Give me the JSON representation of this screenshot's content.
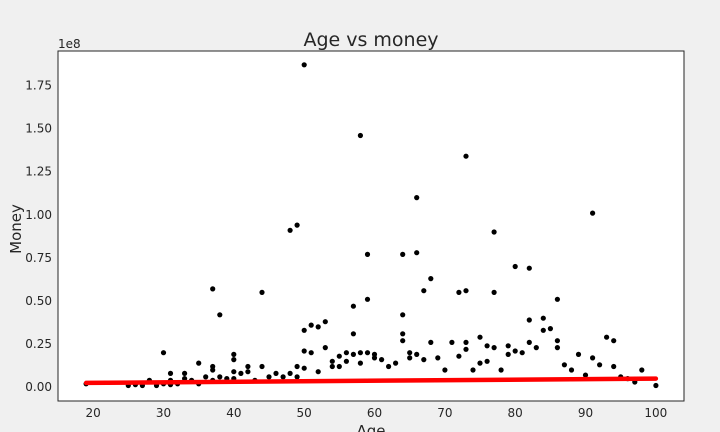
{
  "chart_data": {
    "type": "scatter",
    "title": "Age vs money",
    "xlabel": "Age",
    "ylabel": "Money",
    "y_offset_label": "1e8",
    "xlim": [
      15,
      104
    ],
    "ylim": [
      -8000000,
      195000000
    ],
    "x_ticks": [
      20,
      30,
      40,
      50,
      60,
      70,
      80,
      90,
      100
    ],
    "y_ticks": [
      0,
      25000000,
      50000000,
      75000000,
      100000000,
      125000000,
      150000000,
      175000000
    ],
    "y_tick_labels": [
      "0.00",
      "0.25",
      "0.50",
      "0.75",
      "1.00",
      "1.25",
      "1.50",
      "1.75"
    ],
    "grid": false,
    "legend": "none",
    "colors": {
      "points": "#000000",
      "fit_line": "#ff0000",
      "background": "#f0f0f0",
      "plot_area": "#ffffff"
    },
    "fit_line": {
      "x": [
        19,
        100
      ],
      "y": [
        2500000,
        5000000
      ]
    },
    "points": [
      [
        19,
        2000000
      ],
      [
        25,
        1000000
      ],
      [
        26,
        1500000
      ],
      [
        27,
        1000000
      ],
      [
        28,
        4000000
      ],
      [
        29,
        1000000
      ],
      [
        30,
        2000000
      ],
      [
        30,
        20000000
      ],
      [
        31,
        8000000
      ],
      [
        31,
        4000000
      ],
      [
        31,
        1500000
      ],
      [
        32,
        2000000
      ],
      [
        33,
        5000000
      ],
      [
        33,
        8000000
      ],
      [
        34,
        4000000
      ],
      [
        35,
        14000000
      ],
      [
        35,
        2000000
      ],
      [
        36,
        6000000
      ],
      [
        37,
        10000000
      ],
      [
        37,
        4000000
      ],
      [
        37,
        57000000
      ],
      [
        37,
        12000000
      ],
      [
        38,
        42000000
      ],
      [
        38,
        6000000
      ],
      [
        39,
        5000000
      ],
      [
        40,
        19000000
      ],
      [
        40,
        16000000
      ],
      [
        40,
        9000000
      ],
      [
        40,
        5000000
      ],
      [
        41,
        8000000
      ],
      [
        42,
        12000000
      ],
      [
        42,
        9000000
      ],
      [
        43,
        4000000
      ],
      [
        44,
        55000000
      ],
      [
        44,
        12000000
      ],
      [
        45,
        6000000
      ],
      [
        46,
        8000000
      ],
      [
        47,
        6000000
      ],
      [
        48,
        91000000
      ],
      [
        48,
        8000000
      ],
      [
        49,
        94000000
      ],
      [
        49,
        12000000
      ],
      [
        49,
        6000000
      ],
      [
        50,
        187000000
      ],
      [
        50,
        33000000
      ],
      [
        50,
        21000000
      ],
      [
        50,
        11000000
      ],
      [
        51,
        36000000
      ],
      [
        51,
        20000000
      ],
      [
        52,
        35000000
      ],
      [
        52,
        9000000
      ],
      [
        53,
        38000000
      ],
      [
        53,
        23000000
      ],
      [
        54,
        15000000
      ],
      [
        54,
        12000000
      ],
      [
        55,
        12000000
      ],
      [
        55,
        18000000
      ],
      [
        56,
        20000000
      ],
      [
        56,
        15000000
      ],
      [
        57,
        47000000
      ],
      [
        57,
        31000000
      ],
      [
        57,
        19000000
      ],
      [
        58,
        146000000
      ],
      [
        58,
        20000000
      ],
      [
        58,
        14000000
      ],
      [
        59,
        77000000
      ],
      [
        59,
        51000000
      ],
      [
        59,
        20000000
      ],
      [
        60,
        17000000
      ],
      [
        60,
        19000000
      ],
      [
        61,
        16000000
      ],
      [
        62,
        12000000
      ],
      [
        63,
        14000000
      ],
      [
        64,
        77000000
      ],
      [
        64,
        42000000
      ],
      [
        64,
        31000000
      ],
      [
        64,
        27000000
      ],
      [
        65,
        20000000
      ],
      [
        65,
        17000000
      ],
      [
        66,
        110000000
      ],
      [
        66,
        78000000
      ],
      [
        66,
        19000000
      ],
      [
        67,
        56000000
      ],
      [
        67,
        16000000
      ],
      [
        68,
        63000000
      ],
      [
        68,
        26000000
      ],
      [
        69,
        17000000
      ],
      [
        70,
        10000000
      ],
      [
        71,
        26000000
      ],
      [
        72,
        55000000
      ],
      [
        72,
        18000000
      ],
      [
        73,
        134000000
      ],
      [
        73,
        56000000
      ],
      [
        73,
        26000000
      ],
      [
        73,
        22000000
      ],
      [
        74,
        10000000
      ],
      [
        75,
        29000000
      ],
      [
        75,
        14000000
      ],
      [
        76,
        24000000
      ],
      [
        76,
        15000000
      ],
      [
        77,
        90000000
      ],
      [
        77,
        55000000
      ],
      [
        77,
        23000000
      ],
      [
        78,
        10000000
      ],
      [
        79,
        24000000
      ],
      [
        79,
        19000000
      ],
      [
        80,
        70000000
      ],
      [
        80,
        21000000
      ],
      [
        81,
        20000000
      ],
      [
        82,
        69000000
      ],
      [
        82,
        39000000
      ],
      [
        82,
        26000000
      ],
      [
        83,
        23000000
      ],
      [
        84,
        40000000
      ],
      [
        84,
        33000000
      ],
      [
        85,
        34000000
      ],
      [
        86,
        51000000
      ],
      [
        86,
        27000000
      ],
      [
        86,
        23000000
      ],
      [
        87,
        13000000
      ],
      [
        88,
        10000000
      ],
      [
        89,
        19000000
      ],
      [
        90,
        7000000
      ],
      [
        91,
        101000000
      ],
      [
        91,
        17000000
      ],
      [
        92,
        13000000
      ],
      [
        93,
        29000000
      ],
      [
        94,
        27000000
      ],
      [
        94,
        12000000
      ],
      [
        95,
        6000000
      ],
      [
        96,
        5000000
      ],
      [
        97,
        3000000
      ],
      [
        98,
        10000000
      ],
      [
        100,
        1000000
      ]
    ]
  }
}
